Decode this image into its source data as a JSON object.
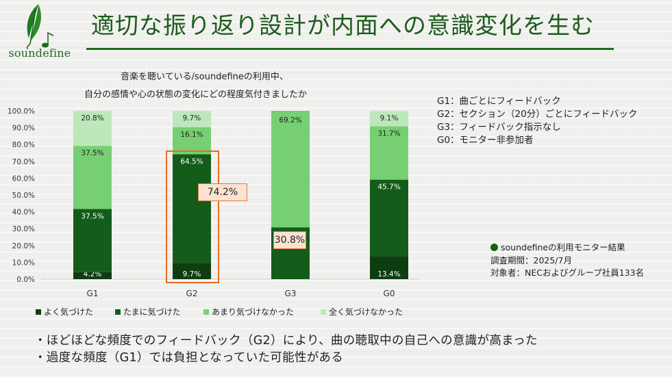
{
  "brand": {
    "name": "soundefine",
    "icon": "quill-music-note-icon"
  },
  "title": "適切な振り返り設計が内面への意識変化を生む",
  "question": {
    "line1": "音楽を聴いている/soundefineの利用中、",
    "line2": "自分の感情や心の状態の変化にどの程度気付きましたか"
  },
  "group_legend": [
    "G1：曲ごとにフィードバック",
    "G2：セクション（20分）ごとにフィードバック",
    "G3：フィードバック指示なし",
    "G0：モニター非参加者"
  ],
  "meta": {
    "line1": "soundefineの利用モニター結果",
    "line2": "調査期間：2025/7月",
    "line3": "対象者：NECおよびグループ社員133名"
  },
  "bullets": [
    "・ほどほどな頻度でのフィードバック（G2）により、曲の聴取中の自己への意識が高まった",
    "・過度な頻度（G1）では負担となっていた可能性がある"
  ],
  "callouts": {
    "g2_total": "74.2%",
    "g3_total": "30.8%"
  },
  "colors": {
    "very_aware": "#0f3d12",
    "sometimes_aware": "#145c1a",
    "rarely_aware": "#77cf73",
    "not_aware": "#bde8bb",
    "highlight": "#ea6a1b",
    "title": "#1d5c1d"
  },
  "chart_data": {
    "type": "bar",
    "stacked": true,
    "categories": [
      "G1",
      "G2",
      "G3",
      "G0"
    ],
    "ylim": [
      0,
      100
    ],
    "yticks": [
      "0.0%",
      "10.0%",
      "20.0%",
      "30.0%",
      "40.0%",
      "50.0%",
      "60.0%",
      "70.0%",
      "80.0%",
      "90.0%",
      "100.0%"
    ],
    "legend_position": "bottom",
    "series": [
      {
        "name": "よく気づけた",
        "values": [
          4.2,
          9.7,
          0.0,
          13.4
        ],
        "labels": [
          "4.2%",
          "9.7%",
          "",
          "13.4%"
        ]
      },
      {
        "name": "たまに気づけた",
        "values": [
          37.5,
          64.5,
          30.8,
          45.7
        ],
        "labels": [
          "37.5%",
          "64.5%",
          "",
          "45.7%"
        ]
      },
      {
        "name": "あまり気づけなかった",
        "values": [
          37.5,
          16.1,
          69.2,
          31.7
        ],
        "labels": [
          "37.5%",
          "16.1%",
          "69.2%",
          "31.7%"
        ]
      },
      {
        "name": "全く気づけなかった",
        "values": [
          20.8,
          9.7,
          0.0,
          9.1
        ],
        "labels": [
          "20.8%",
          "9.7%",
          "",
          "9.1%"
        ]
      }
    ]
  }
}
